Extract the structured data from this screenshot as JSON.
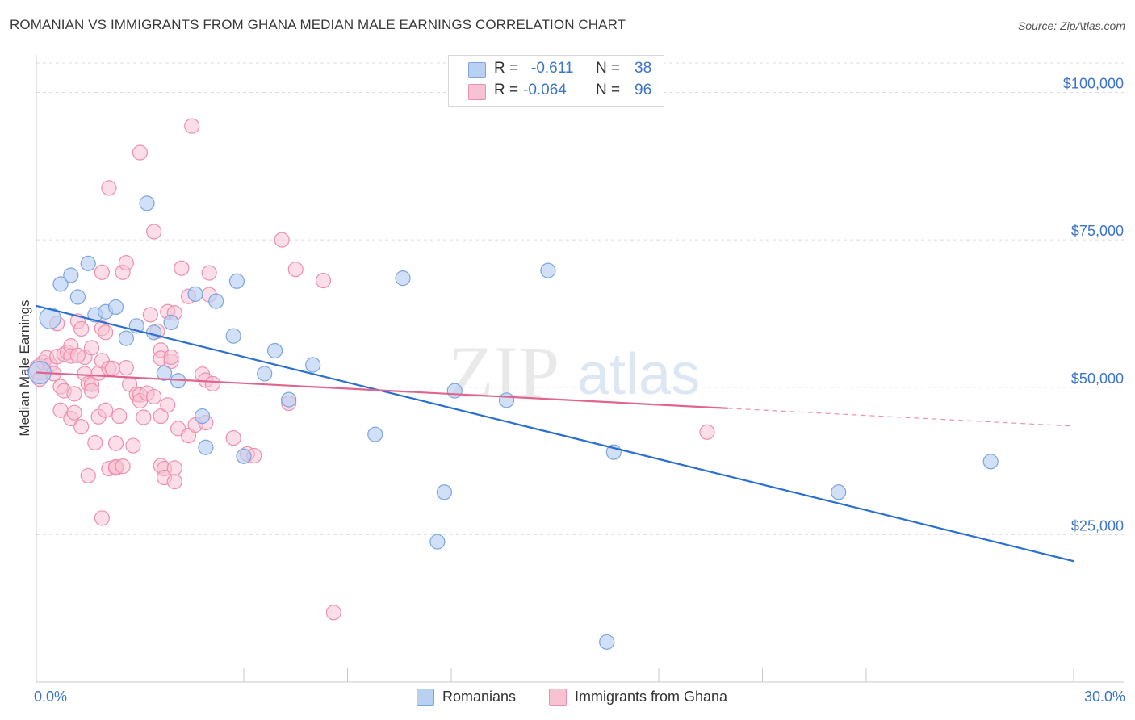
{
  "title": "ROMANIAN VS IMMIGRANTS FROM GHANA MEDIAN MALE EARNINGS CORRELATION CHART",
  "source": "Source: ZipAtlas.com",
  "watermark": {
    "zip": "ZIP",
    "atlas": "atlas"
  },
  "colors": {
    "romanians_fill": "#b8d0f2",
    "romanians_stroke": "#7ba5e0",
    "romanians_line": "#2b6fd0",
    "ghana_fill": "#f7c3d3",
    "ghana_stroke": "#ee8fad",
    "ghana_line": "#e0658e",
    "accent_text": "#3b74c9",
    "grid": "#dddddd"
  },
  "legend": {
    "rows": [
      {
        "r_label": "R =",
        "r_value": "-0.611",
        "n_label": "N =",
        "n_value": "38"
      },
      {
        "r_label": "R =",
        "r_value": "-0.064",
        "n_label": "N =",
        "n_value": "96"
      }
    ]
  },
  "bottom_legend": {
    "romanians": "Romanians",
    "ghana": "Immigrants from Ghana"
  },
  "chart_data": {
    "type": "scatter",
    "title": "ROMANIAN VS IMMIGRANTS FROM GHANA MEDIAN MALE EARNINGS CORRELATION CHART",
    "xlabel": "",
    "ylabel": "Median Male Earnings",
    "xlim": [
      0,
      30
    ],
    "ylim": [
      0,
      105000
    ],
    "x_tick_labels": [
      "0.0%",
      "30.0%"
    ],
    "y_ticks": [
      25000,
      50000,
      75000,
      100000
    ],
    "y_tick_labels": [
      "$25,000",
      "$50,000",
      "$75,000",
      "$100,000"
    ],
    "grid": true,
    "series": [
      {
        "name": "Romanians",
        "r": -0.611,
        "n": 38,
        "trend": {
          "x0": 0,
          "y0": 63800,
          "x1": 30,
          "y1": 20500,
          "dashed_from": null
        },
        "points": [
          [
            0.1,
            52500,
            14
          ],
          [
            0.4,
            61700,
            13
          ],
          [
            0.7,
            67500,
            9
          ],
          [
            1.0,
            69000,
            9
          ],
          [
            1.2,
            65300,
            9
          ],
          [
            1.5,
            71000,
            9
          ],
          [
            1.7,
            62300,
            9
          ],
          [
            2.0,
            62800,
            9
          ],
          [
            2.3,
            63600,
            9
          ],
          [
            2.6,
            58300,
            9
          ],
          [
            2.9,
            60400,
            9
          ],
          [
            3.2,
            81200,
            9
          ],
          [
            3.4,
            59300,
            9
          ],
          [
            3.7,
            52400,
            9
          ],
          [
            3.9,
            61000,
            9
          ],
          [
            4.1,
            51100,
            9
          ],
          [
            4.6,
            65800,
            9
          ],
          [
            4.8,
            45100,
            9
          ],
          [
            4.9,
            39800,
            9
          ],
          [
            5.2,
            64600,
            9
          ],
          [
            5.7,
            58700,
            9
          ],
          [
            5.8,
            68000,
            9
          ],
          [
            6.0,
            38300,
            9
          ],
          [
            6.6,
            52300,
            9
          ],
          [
            6.9,
            56200,
            9
          ],
          [
            7.3,
            47900,
            9
          ],
          [
            8.0,
            53800,
            9
          ],
          [
            9.8,
            42000,
            9
          ],
          [
            10.6,
            68500,
            9
          ],
          [
            11.6,
            23800,
            9
          ],
          [
            11.8,
            32200,
            9
          ],
          [
            12.1,
            49400,
            9
          ],
          [
            13.6,
            47800,
            9
          ],
          [
            14.8,
            69800,
            9
          ],
          [
            16.5,
            6800,
            9
          ],
          [
            16.7,
            39000,
            9
          ],
          [
            23.2,
            32200,
            9
          ],
          [
            27.6,
            37400,
            9
          ]
        ]
      },
      {
        "name": "Immigrants from Ghana",
        "r": -0.064,
        "n": 96,
        "trend": {
          "x0": 0,
          "y0": 52500,
          "x1": 30,
          "y1": 43400,
          "dashed_from": 20.0
        },
        "points": [
          [
            0.1,
            53000,
            13
          ],
          [
            0.1,
            51400,
            9
          ],
          [
            0.2,
            54200,
            9
          ],
          [
            0.3,
            55000,
            9
          ],
          [
            0.4,
            53800,
            9
          ],
          [
            0.5,
            52300,
            9
          ],
          [
            0.6,
            55200,
            9
          ],
          [
            0.6,
            60800,
            9
          ],
          [
            0.7,
            50100,
            9
          ],
          [
            0.7,
            46100,
            9
          ],
          [
            0.8,
            49400,
            9
          ],
          [
            0.8,
            55600,
            9
          ],
          [
            0.9,
            55900,
            9
          ],
          [
            1.0,
            57000,
            9
          ],
          [
            1.0,
            44700,
            9
          ],
          [
            1.0,
            55300,
            9
          ],
          [
            1.1,
            45700,
            9
          ],
          [
            1.1,
            48900,
            9
          ],
          [
            1.2,
            61200,
            9
          ],
          [
            1.3,
            43300,
            9
          ],
          [
            1.3,
            59900,
            9
          ],
          [
            1.4,
            55100,
            9
          ],
          [
            1.4,
            52300,
            9
          ],
          [
            1.5,
            50600,
            9
          ],
          [
            1.6,
            56700,
            9
          ],
          [
            1.5,
            35000,
            9
          ],
          [
            1.6,
            50500,
            9
          ],
          [
            1.6,
            49400,
            9
          ],
          [
            1.7,
            40600,
            9
          ],
          [
            1.8,
            45000,
            9
          ],
          [
            1.8,
            52400,
            9
          ],
          [
            1.9,
            54500,
            9
          ],
          [
            1.9,
            69500,
            9
          ],
          [
            1.9,
            60000,
            9
          ],
          [
            1.9,
            27800,
            9
          ],
          [
            2.0,
            46100,
            9
          ],
          [
            2.0,
            59300,
            9
          ],
          [
            2.1,
            83800,
            9
          ],
          [
            2.1,
            53200,
            9
          ],
          [
            2.1,
            36200,
            9
          ],
          [
            2.3,
            36300,
            9
          ],
          [
            2.3,
            36500,
            9
          ],
          [
            2.3,
            40500,
            9
          ],
          [
            2.4,
            45100,
            9
          ],
          [
            2.5,
            36600,
            9
          ],
          [
            2.5,
            69500,
            9
          ],
          [
            2.6,
            71100,
            9
          ],
          [
            2.6,
            53300,
            9
          ],
          [
            2.7,
            50500,
            9
          ],
          [
            2.8,
            40100,
            9
          ],
          [
            2.9,
            48800,
            9
          ],
          [
            3.0,
            48700,
            9
          ],
          [
            3.0,
            47700,
            9
          ],
          [
            3.0,
            89800,
            9
          ],
          [
            3.1,
            44900,
            9
          ],
          [
            3.2,
            49000,
            9
          ],
          [
            3.3,
            62300,
            9
          ],
          [
            3.4,
            76400,
            9
          ],
          [
            3.4,
            48400,
            9
          ],
          [
            3.5,
            59500,
            9
          ],
          [
            3.6,
            56300,
            9
          ],
          [
            3.6,
            54900,
            9
          ],
          [
            3.6,
            45100,
            9
          ],
          [
            3.6,
            36700,
            9
          ],
          [
            3.7,
            36200,
            9
          ],
          [
            3.7,
            34700,
            9
          ],
          [
            3.8,
            62800,
            9
          ],
          [
            3.8,
            47000,
            9
          ],
          [
            3.9,
            54400,
            9
          ],
          [
            4.0,
            62600,
            9
          ],
          [
            3.9,
            55100,
            9
          ],
          [
            4.0,
            34000,
            9
          ],
          [
            4.0,
            36300,
            9
          ],
          [
            4.1,
            43000,
            9
          ],
          [
            4.2,
            70200,
            9
          ],
          [
            4.4,
            65400,
            9
          ],
          [
            4.4,
            41800,
            9
          ],
          [
            4.5,
            94300,
            9
          ],
          [
            4.6,
            43600,
            9
          ],
          [
            4.8,
            52200,
            9
          ],
          [
            4.9,
            51200,
            9
          ],
          [
            4.9,
            44000,
            9
          ],
          [
            5.0,
            69400,
            9
          ],
          [
            5.0,
            65700,
            9
          ],
          [
            5.1,
            50600,
            9
          ],
          [
            5.7,
            41400,
            9
          ],
          [
            6.1,
            38700,
            9
          ],
          [
            6.3,
            38400,
            9
          ],
          [
            7.1,
            75000,
            9
          ],
          [
            7.3,
            47300,
            9
          ],
          [
            7.5,
            70000,
            9
          ],
          [
            8.3,
            68100,
            9
          ],
          [
            8.6,
            11800,
            9
          ],
          [
            19.4,
            42400,
            9
          ],
          [
            2.2,
            53200,
            9
          ],
          [
            1.2,
            55400,
            9
          ]
        ]
      }
    ]
  }
}
